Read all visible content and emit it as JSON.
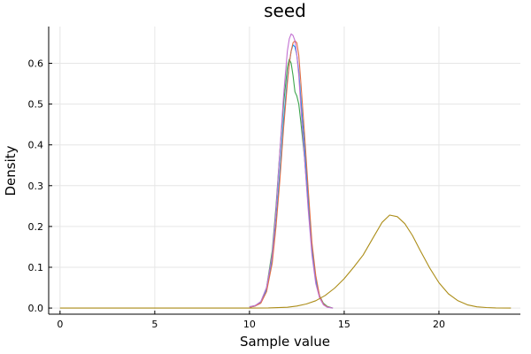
{
  "chart_data": {
    "type": "line",
    "title": "seed",
    "xlabel": "Sample value",
    "ylabel": "Density",
    "xlim": [
      -0.6,
      24.3
    ],
    "ylim": [
      -0.015,
      0.69
    ],
    "xticks": [
      0,
      5,
      10,
      15,
      20
    ],
    "xtick_labels": [
      "0",
      "5",
      "10",
      "15",
      "20"
    ],
    "yticks": [
      0.0,
      0.1,
      0.2,
      0.3,
      0.4,
      0.5,
      0.6
    ],
    "ytick_labels": [
      "0.0",
      "0.1",
      "0.2",
      "0.3",
      "0.4",
      "0.5",
      "0.6"
    ],
    "grid": true,
    "legend": "none",
    "series": [
      {
        "color": "#3da44d",
        "x": [
          10.0,
          10.3,
          10.6,
          10.9,
          11.2,
          11.4,
          11.6,
          11.8,
          12.0,
          12.1,
          12.2,
          12.3,
          12.4,
          12.5,
          12.6,
          12.7,
          12.9,
          13.1,
          13.3,
          13.5,
          13.7,
          13.9,
          14.1,
          14.4
        ],
        "y": [
          0.003,
          0.006,
          0.015,
          0.05,
          0.14,
          0.25,
          0.38,
          0.5,
          0.59,
          0.61,
          0.6,
          0.57,
          0.53,
          0.52,
          0.5,
          0.46,
          0.37,
          0.25,
          0.14,
          0.07,
          0.03,
          0.012,
          0.004,
          0.0
        ]
      },
      {
        "color": "#009af9",
        "x": [
          10.0,
          10.3,
          10.6,
          10.9,
          11.2,
          11.4,
          11.6,
          11.8,
          12.0,
          12.1,
          12.2,
          12.3,
          12.4,
          12.5,
          12.6,
          12.7,
          12.9,
          13.1,
          13.3,
          13.5,
          13.7,
          13.9,
          14.1,
          14.4
        ],
        "y": [
          0.002,
          0.005,
          0.015,
          0.045,
          0.12,
          0.21,
          0.33,
          0.46,
          0.56,
          0.6,
          0.63,
          0.645,
          0.64,
          0.62,
          0.58,
          0.52,
          0.4,
          0.27,
          0.15,
          0.07,
          0.03,
          0.01,
          0.003,
          0.0
        ]
      },
      {
        "color": "#e26f46",
        "x": [
          10.0,
          10.3,
          10.6,
          10.9,
          11.2,
          11.4,
          11.6,
          11.8,
          12.0,
          12.1,
          12.2,
          12.3,
          12.4,
          12.5,
          12.6,
          12.7,
          12.9,
          13.1,
          13.3,
          13.5,
          13.7,
          13.9,
          14.1,
          14.4
        ],
        "y": [
          0.002,
          0.005,
          0.012,
          0.04,
          0.11,
          0.2,
          0.31,
          0.44,
          0.55,
          0.6,
          0.63,
          0.65,
          0.655,
          0.65,
          0.62,
          0.56,
          0.43,
          0.29,
          0.16,
          0.08,
          0.03,
          0.01,
          0.003,
          0.0
        ]
      },
      {
        "color": "#c271d2",
        "x": [
          10.0,
          10.3,
          10.6,
          10.9,
          11.2,
          11.4,
          11.6,
          11.8,
          12.0,
          12.1,
          12.2,
          12.3,
          12.4,
          12.5,
          12.6,
          12.7,
          12.9,
          13.1,
          13.3,
          13.5,
          13.7,
          13.9,
          14.1,
          14.4
        ],
        "y": [
          0.003,
          0.006,
          0.016,
          0.05,
          0.13,
          0.24,
          0.38,
          0.52,
          0.63,
          0.66,
          0.672,
          0.668,
          0.655,
          0.62,
          0.57,
          0.5,
          0.37,
          0.24,
          0.13,
          0.06,
          0.025,
          0.008,
          0.002,
          0.0
        ]
      },
      {
        "color": "#ac8d18",
        "x": [
          0,
          3,
          6,
          8,
          9,
          10,
          11,
          12,
          12.5,
          13,
          13.5,
          14,
          14.5,
          15,
          15.5,
          16,
          16.5,
          17,
          17.4,
          17.8,
          18.2,
          18.6,
          19,
          19.5,
          20,
          20.5,
          21,
          21.5,
          22,
          22.5,
          23,
          23.8
        ],
        "y": [
          0.0,
          0.0,
          0.0,
          0.0,
          0.0,
          0.0,
          0.0005,
          0.002,
          0.005,
          0.01,
          0.018,
          0.031,
          0.049,
          0.072,
          0.1,
          0.13,
          0.17,
          0.21,
          0.228,
          0.224,
          0.207,
          0.178,
          0.142,
          0.099,
          0.062,
          0.035,
          0.018,
          0.008,
          0.003,
          0.0012,
          0.0004,
          0.0
        ]
      }
    ]
  }
}
